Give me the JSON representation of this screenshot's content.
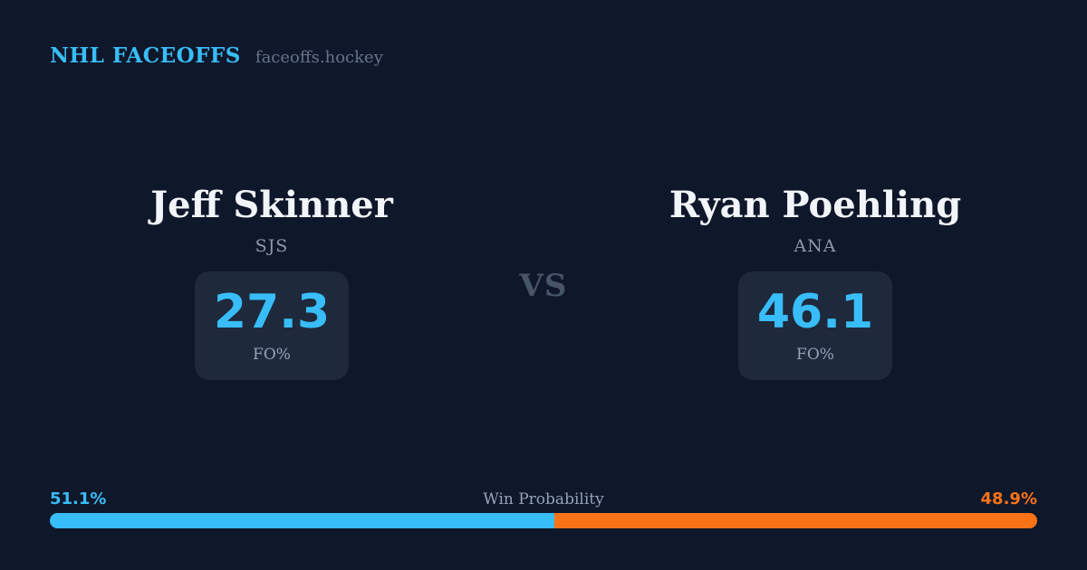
{
  "header": {
    "brand": "NHL FACEOFFS",
    "domain": "faceoffs.hockey"
  },
  "matchup": {
    "vs_label": "VS",
    "left_player": {
      "name": "Jeff Skinner",
      "team": "SJS",
      "stat_value": "27.3",
      "stat_label": "FO%"
    },
    "right_player": {
      "name": "Ryan Poehling",
      "team": "ANA",
      "stat_value": "46.1",
      "stat_label": "FO%"
    }
  },
  "win_probability": {
    "title": "Win Probability",
    "left_pct_label": "51.1%",
    "right_pct_label": "48.9%",
    "left_value": 51.1,
    "right_value": 48.9,
    "left_color": "#38bdf8",
    "right_color": "#f97316"
  },
  "colors": {
    "background": "#0f172a",
    "card": "#1e293b",
    "accent_blue": "#38bdf8",
    "accent_orange": "#f97316",
    "text_primary": "#f1f5f9",
    "text_muted": "#94a3b8"
  }
}
